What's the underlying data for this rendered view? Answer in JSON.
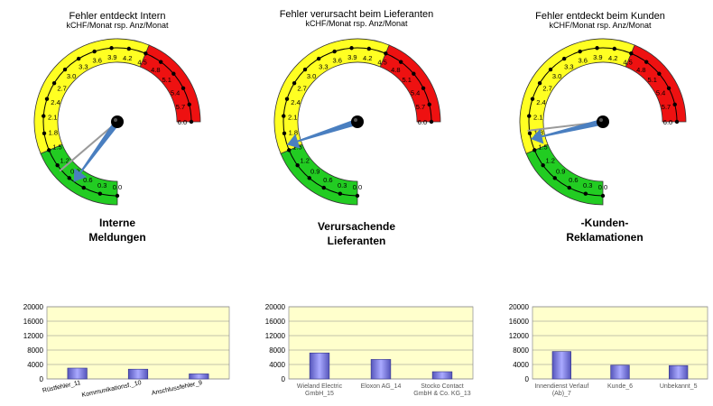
{
  "colors": {
    "green": "#22cc22",
    "yellow": "#ffff22",
    "red": "#ee1111",
    "needle": "#4a7fc0",
    "needle_prev": "#9a9a9a",
    "bar": "#7777dd",
    "plot_bg": "#ffffcc"
  },
  "chart_data": [
    {
      "type": "gauge",
      "title": "Fehler entdeckt  Intern",
      "subtitle": "kCHF/Monat rsp. Anz/Monat",
      "caption_line1": "Interne",
      "caption_line2": "Meldungen",
      "scale_min": 0,
      "scale_max": 6,
      "ticks": [
        "0.0",
        "0.3",
        "0.6",
        "0.9",
        "1.2",
        "1.5",
        "1.8",
        "2.1",
        "2.4",
        "2.7",
        "3.0",
        "3.3",
        "3.6",
        "3.9",
        "4.2",
        "4.5",
        "4.8",
        "5.1",
        "5.4",
        "5.7",
        "6.0"
      ],
      "bands": [
        {
          "color": "green",
          "from": 0,
          "to": 1.5
        },
        {
          "color": "yellow",
          "from": 1.5,
          "to": 4.5
        },
        {
          "color": "red",
          "from": 4.5,
          "to": 6
        }
      ],
      "needle_value": 0.8,
      "previous_value": 1.1
    },
    {
      "type": "gauge",
      "title": "Fehler verursacht beim Lieferanten",
      "subtitle": "kCHF/Monat rsp. Anz/Monat",
      "caption_line1": "Verursachende",
      "caption_line2": "Lieferanten",
      "scale_min": 0,
      "scale_max": 6,
      "ticks": [
        "0.0",
        "0.3",
        "0.6",
        "0.9",
        "1.2",
        "1.5",
        "1.8",
        "2.1",
        "2.4",
        "2.7",
        "3.0",
        "3.3",
        "3.6",
        "3.9",
        "4.2",
        "4.5",
        "4.8",
        "5.1",
        "5.4",
        "5.7",
        "6.0"
      ],
      "bands": [
        {
          "color": "green",
          "from": 0,
          "to": 1.5
        },
        {
          "color": "yellow",
          "from": 1.5,
          "to": 4.5
        },
        {
          "color": "red",
          "from": 4.5,
          "to": 6
        }
      ],
      "needle_value": 1.6,
      "previous_value": null
    },
    {
      "type": "gauge",
      "title": "Fehler entdeckt beim Kunden",
      "subtitle": "kCHF/Monat rsp. Anz/Monat",
      "caption_line1": "-Kunden-",
      "caption_line2": "Reklamationen",
      "scale_min": 0,
      "scale_max": 6,
      "ticks": [
        "0.0",
        "0.3",
        "0.6",
        "0.9",
        "1.2",
        "1.5",
        "1.8",
        "2.1",
        "2.4",
        "2.7",
        "3.0",
        "3.3",
        "3.6",
        "3.9",
        "4.2",
        "4.5",
        "4.8",
        "5.1",
        "5.4",
        "5.7",
        "6.0"
      ],
      "bands": [
        {
          "color": "green",
          "from": 0,
          "to": 1.5
        },
        {
          "color": "yellow",
          "from": 1.5,
          "to": 4.5
        },
        {
          "color": "red",
          "from": 4.5,
          "to": 6
        }
      ],
      "needle_value": 1.7,
      "previous_value": 1.85
    },
    {
      "type": "bar",
      "categories": [
        "Rüstfehler_11",
        "Kommunikationsf._10",
        "Anschlussfehler_9"
      ],
      "values": [
        3000,
        2700,
        1400
      ],
      "ylim": [
        0,
        20000
      ],
      "yticks": [
        "0",
        "4000",
        "8000",
        "12000",
        "16000",
        "20000"
      ],
      "rotated_labels": true
    },
    {
      "type": "bar",
      "categories": [
        [
          "Wieland Electric",
          "GmbH_15"
        ],
        [
          "Eloxon AG_14"
        ],
        [
          "Stocko Contact",
          "GmbH & Co. KG_13"
        ]
      ],
      "values": [
        7200,
        5400,
        2000
      ],
      "ylim": [
        0,
        20000
      ],
      "yticks": [
        "0",
        "4000",
        "8000",
        "12000",
        "16000",
        "20000"
      ],
      "rotated_labels": false
    },
    {
      "type": "bar",
      "categories": [
        [
          "Innendienst Verlauf",
          "(Ab)_7"
        ],
        [
          "Kunde_6"
        ],
        [
          "Unbekannt_5"
        ]
      ],
      "values": [
        7600,
        3800,
        3700
      ],
      "ylim": [
        0,
        20000
      ],
      "yticks": [
        "0",
        "4000",
        "8000",
        "12000",
        "16000",
        "20000"
      ],
      "rotated_labels": false
    }
  ]
}
